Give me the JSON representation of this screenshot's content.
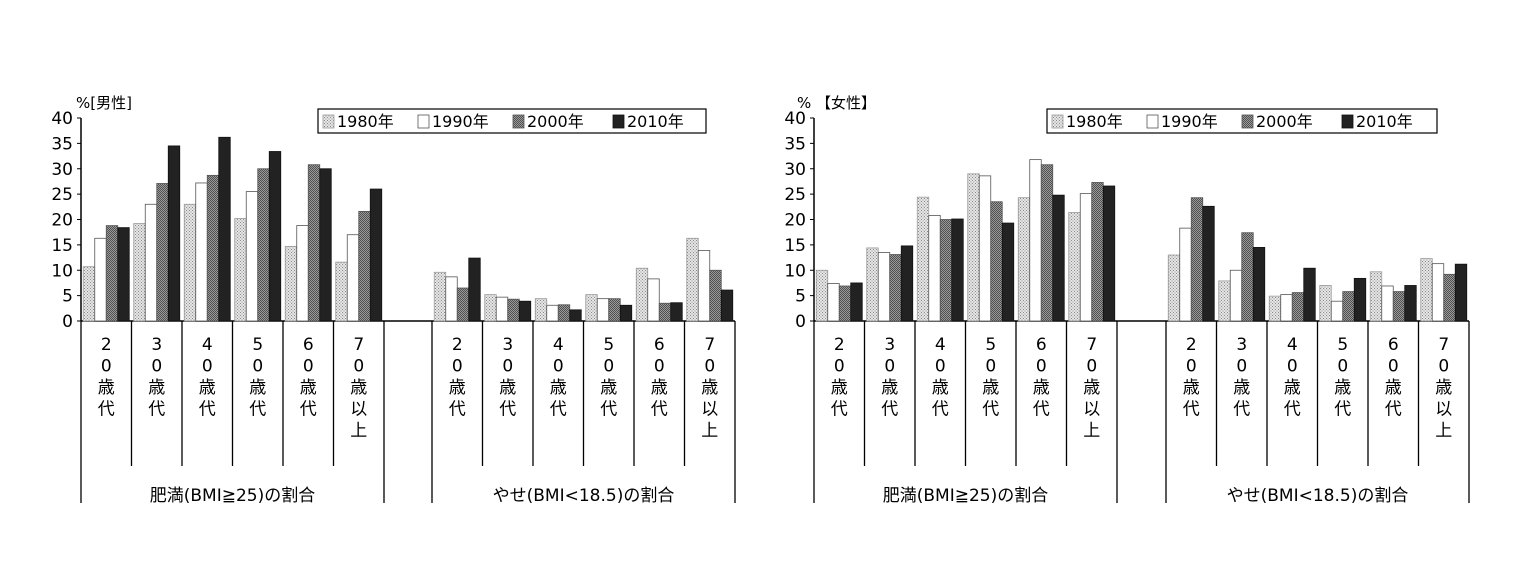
{
  "chart_data": [
    {
      "type": "bar",
      "panel_label": "%[男性]",
      "ylim": [
        0,
        40
      ],
      "y_ticks": [
        "0",
        "5",
        "10",
        "15",
        "20",
        "25",
        "30",
        "35",
        "40"
      ],
      "legend_placement": "top-right",
      "groups": [
        {
          "label": "肥満(BMI≧25)の割合",
          "categories": [
            "20歳代",
            "30歳代",
            "40歳代",
            "50歳代",
            "60歳代",
            "70歳以上"
          ]
        },
        {
          "label": "やせ(BMI<18.5)の割合",
          "categories": [
            "20歳代",
            "30歳代",
            "40歳代",
            "50歳代",
            "60歳代",
            "70歳以上"
          ]
        }
      ],
      "series": [
        {
          "name": "1980年",
          "values": [
            10.7,
            19.2,
            23.0,
            20.2,
            14.7,
            11.6,
            9.6,
            5.2,
            4.4,
            5.2,
            10.4,
            16.3
          ]
        },
        {
          "name": "1990年",
          "values": [
            16.3,
            23.0,
            27.2,
            25.5,
            18.8,
            17.0,
            8.7,
            4.7,
            3.1,
            4.4,
            8.3,
            13.9
          ]
        },
        {
          "name": "2000年",
          "values": [
            18.8,
            27.1,
            28.7,
            30.0,
            30.8,
            21.6,
            6.5,
            4.3,
            3.2,
            4.4,
            3.5,
            10.0
          ]
        },
        {
          "name": "2010年",
          "values": [
            18.4,
            34.5,
            36.2,
            33.4,
            30.0,
            26.0,
            12.4,
            3.9,
            2.2,
            3.1,
            3.6,
            6.1
          ]
        }
      ]
    },
    {
      "type": "bar",
      "panel_label": "% 【女性】",
      "ylim": [
        0,
        40
      ],
      "y_ticks": [
        "0",
        "5",
        "10",
        "15",
        "20",
        "25",
        "30",
        "35",
        "40"
      ],
      "legend_placement": "top-right",
      "groups": [
        {
          "label": "肥満(BMI≧25)の割合",
          "categories": [
            "20歳代",
            "30歳代",
            "40歳代",
            "50歳代",
            "60歳代",
            "70歳以上"
          ]
        },
        {
          "label": "やせ(BMI<18.5)の割合",
          "categories": [
            "20歳代",
            "30歳代",
            "40歳代",
            "50歳代",
            "60歳代",
            "70歳以上"
          ]
        }
      ],
      "series": [
        {
          "name": "1980年",
          "values": [
            10.0,
            14.4,
            24.4,
            29.0,
            24.3,
            21.4,
            13.0,
            7.9,
            4.9,
            7.0,
            9.7,
            12.3
          ]
        },
        {
          "name": "1990年",
          "values": [
            7.4,
            13.5,
            20.8,
            28.6,
            31.8,
            25.1,
            18.3,
            10.0,
            5.2,
            3.9,
            6.9,
            11.3
          ]
        },
        {
          "name": "2000年",
          "values": [
            6.9,
            13.1,
            20.0,
            23.5,
            30.8,
            27.3,
            24.3,
            17.4,
            5.6,
            5.8,
            5.8,
            9.2
          ]
        },
        {
          "name": "2010年",
          "values": [
            7.5,
            14.8,
            20.1,
            19.3,
            24.8,
            26.6,
            22.6,
            14.5,
            10.4,
            8.4,
            7.0,
            11.2
          ]
        }
      ]
    }
  ]
}
